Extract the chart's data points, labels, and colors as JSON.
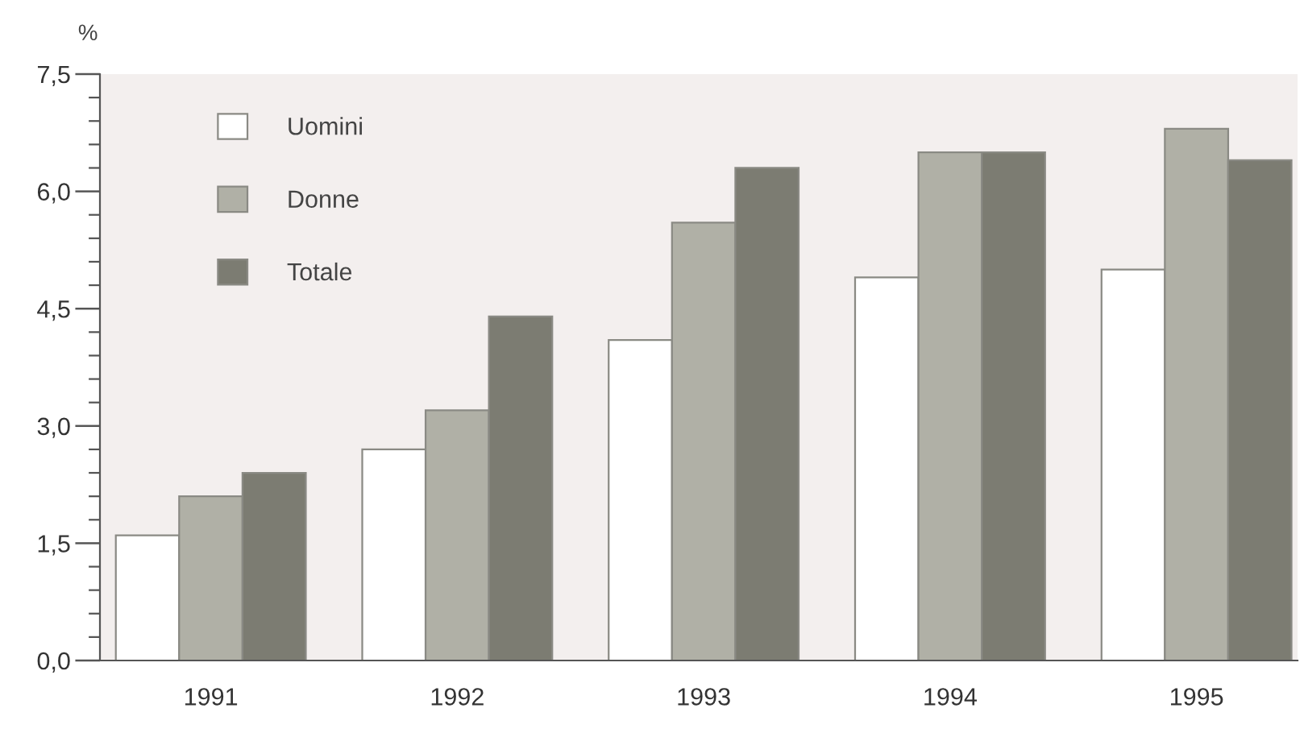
{
  "chart_data": {
    "type": "bar",
    "ylabel": "%",
    "categories": [
      "1991",
      "1992",
      "1993",
      "1994",
      "1995"
    ],
    "series": [
      {
        "name": "Uomini",
        "color": "#ffffff",
        "values": [
          1.6,
          2.7,
          4.1,
          4.9,
          5.0
        ]
      },
      {
        "name": "Donne",
        "color": "#b0b0a6",
        "values": [
          2.1,
          3.2,
          5.6,
          6.5,
          6.8
        ]
      },
      {
        "name": "Totale",
        "color": "#7c7c72",
        "values": [
          2.4,
          4.4,
          6.3,
          6.5,
          6.4
        ]
      }
    ],
    "ylim": [
      0,
      7.5
    ],
    "yticks": [
      {
        "value": 0,
        "label": "0,0"
      },
      {
        "value": 0.3,
        "label": null
      },
      {
        "value": 0.6,
        "label": null
      },
      {
        "value": 0.9,
        "label": null
      },
      {
        "value": 1.2,
        "label": null
      },
      {
        "value": 1.5,
        "label": "1,5"
      },
      {
        "value": 1.8,
        "label": null
      },
      {
        "value": 2.1,
        "label": null
      },
      {
        "value": 2.4,
        "label": null
      },
      {
        "value": 2.7,
        "label": null
      },
      {
        "value": 3.0,
        "label": "3,0"
      },
      {
        "value": 3.3,
        "label": null
      },
      {
        "value": 3.6,
        "label": null
      },
      {
        "value": 3.9,
        "label": null
      },
      {
        "value": 4.2,
        "label": null
      },
      {
        "value": 4.5,
        "label": "4,5"
      },
      {
        "value": 4.8,
        "label": null
      },
      {
        "value": 5.1,
        "label": null
      },
      {
        "value": 5.4,
        "label": null
      },
      {
        "value": 5.7,
        "label": null
      },
      {
        "value": 6.0,
        "label": "6,0"
      },
      {
        "value": 6.3,
        "label": null
      },
      {
        "value": 6.6,
        "label": null
      },
      {
        "value": 6.9,
        "label": null
      },
      {
        "value": 7.2,
        "label": null
      },
      {
        "value": 7.5,
        "label": "7,5"
      }
    ],
    "legend": "top left",
    "grid": false
  }
}
